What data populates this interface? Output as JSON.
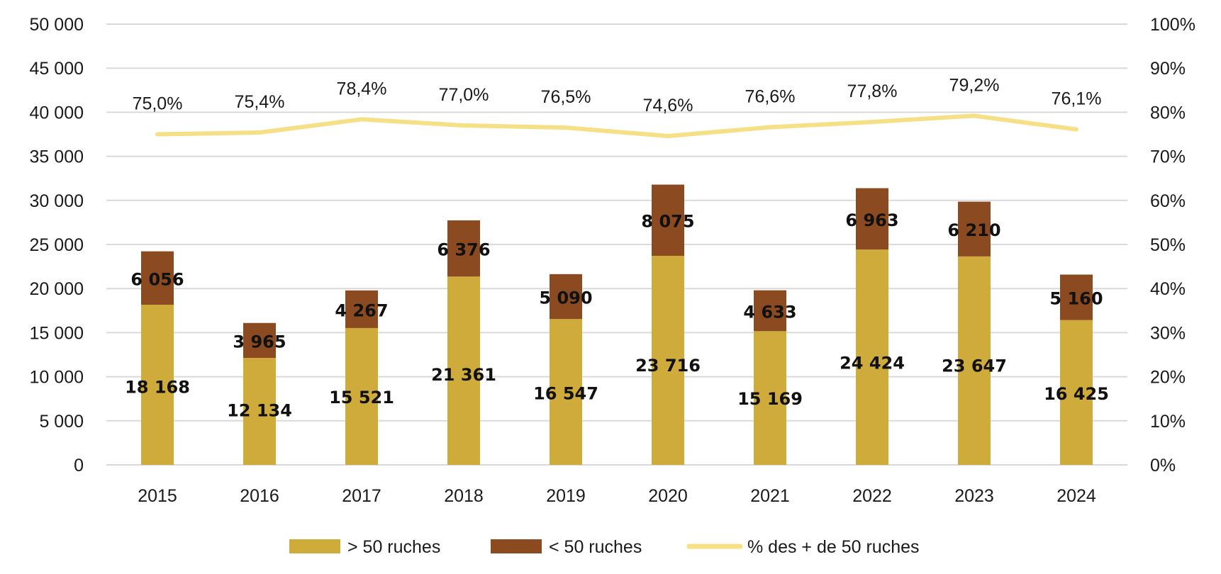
{
  "chart_data": {
    "type": "bar",
    "stacked": true,
    "categories": [
      "2015",
      "2016",
      "2017",
      "2018",
      "2019",
      "2020",
      "2021",
      "2022",
      "2023",
      "2024"
    ],
    "series": [
      {
        "name": "> 50 ruches",
        "axis": "left",
        "values": [
          18168,
          12134,
          15521,
          21361,
          16547,
          23716,
          15169,
          24424,
          23647,
          16425
        ],
        "labels": [
          "18 168",
          "12 134",
          "15 521",
          "21 361",
          "16 547",
          "23 716",
          "15 169",
          "24 424",
          "23 647",
          "16 425"
        ],
        "color": "#cfab3b"
      },
      {
        "name": "< 50 ruches",
        "axis": "left",
        "values": [
          6056,
          3965,
          4267,
          6376,
          5090,
          8075,
          4633,
          6963,
          6210,
          5160
        ],
        "labels": [
          "6 056",
          "3 965",
          "4 267",
          "6 376",
          "5 090",
          "8 075",
          "4 633",
          "6 963",
          "6 210",
          "5 160"
        ],
        "color": "#8b4a1f"
      },
      {
        "name": "% des + de 50 ruches",
        "type": "line",
        "axis": "right",
        "values": [
          75.0,
          75.4,
          78.4,
          77.0,
          76.5,
          74.6,
          76.6,
          77.8,
          79.2,
          76.1
        ],
        "labels": [
          "75,0%",
          "75,4%",
          "78,4%",
          "77,0%",
          "76,5%",
          "74,6%",
          "76,6%",
          "77,8%",
          "79,2%",
          "76,1%"
        ],
        "color": "#f7df86"
      }
    ],
    "y_left": {
      "range": [
        0,
        50000
      ],
      "ticks": [
        "0",
        "5 000",
        "10 000",
        "15 000",
        "20 000",
        "25 000",
        "30 000",
        "35 000",
        "40 000",
        "45 000",
        "50 000"
      ]
    },
    "y_right": {
      "range": [
        0,
        100
      ],
      "ticks": [
        "0%",
        "10%",
        "20%",
        "30%",
        "40%",
        "50%",
        "60%",
        "70%",
        "80%",
        "90%",
        "100%"
      ]
    },
    "grid": true,
    "gridColor": "#d9d9d9",
    "legend": {
      "position": "bottom",
      "items": [
        "> 50 ruches",
        "< 50 ruches",
        "% des + de 50 ruches"
      ]
    }
  }
}
